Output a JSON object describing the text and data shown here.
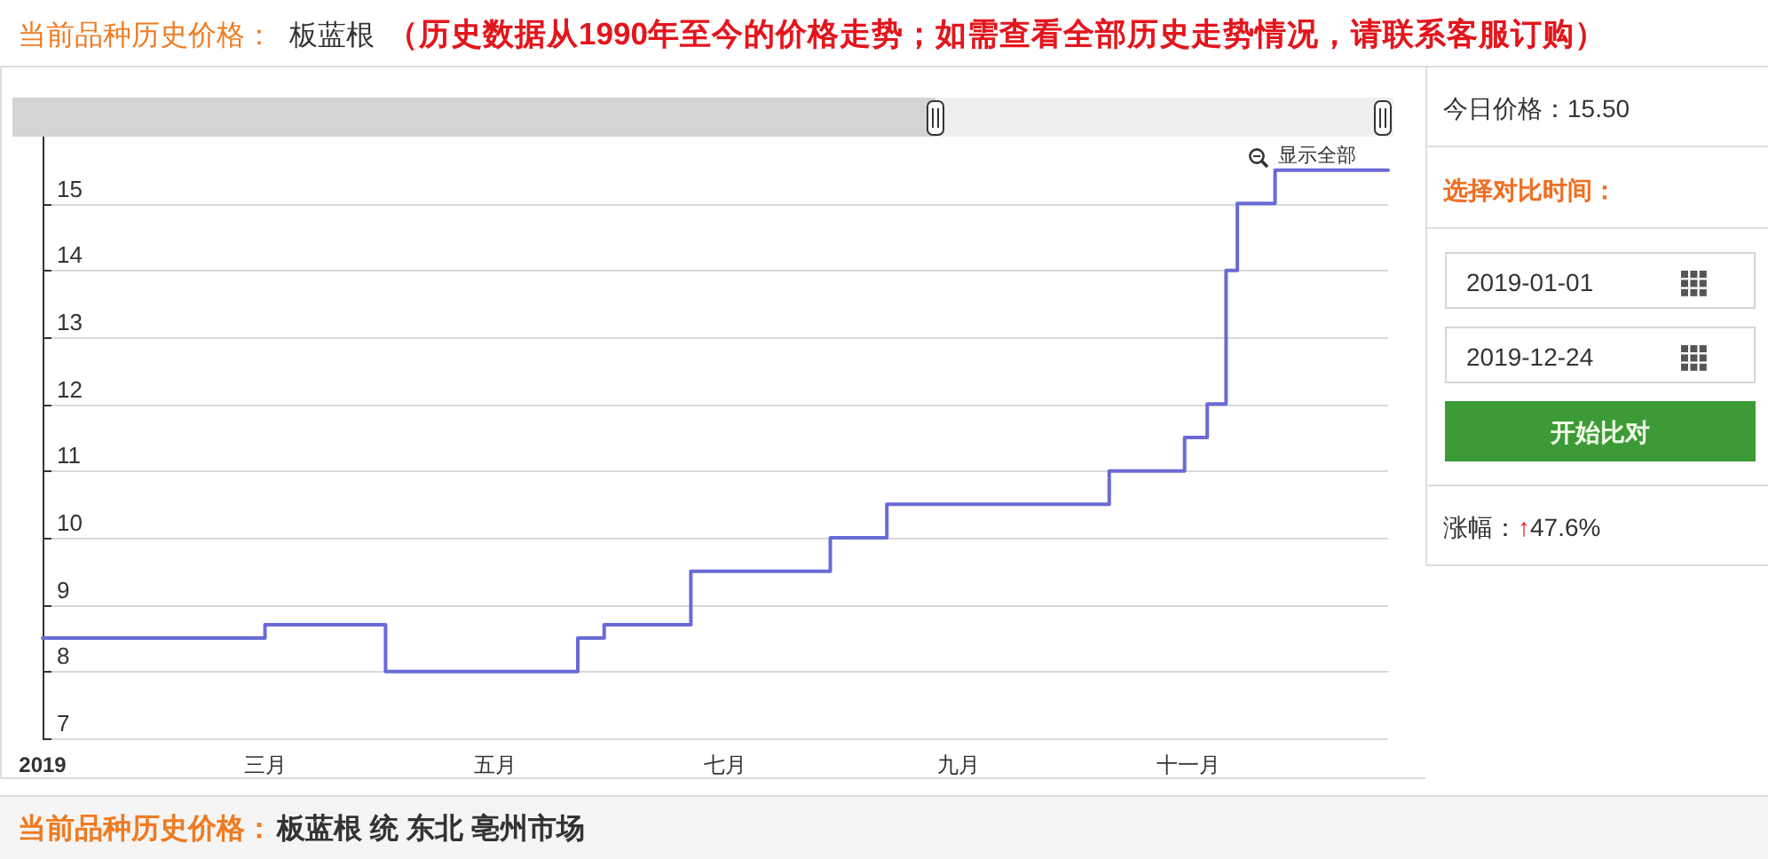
{
  "chart_data": [
    {
      "type": "step",
      "title": "当前品种历史价格：",
      "subtitle": "（历史数据从1990年至今的价格走势；如需查看全部历史走势情况，请联系客服订购）",
      "categories": [
        "2019",
        null,
        null,
        null,
        null,
        null,
        null,
        null,
        null,
        null,
        null,
        null,
        null,
        null,
        null,
        null,
        null,
        null,
        null,
        null,
        null,
        null,
        null,
        null,
        null,
        null,
        null,
        null,
        null,
        null,
        null,
        null,
        null,
        null,
        null,
        null,
        null,
        null,
        null,
        null,
        null,
        null,
        null,
        null,
        null,
        null,
        null,
        null,
        null,
        null,
        null,
        null,
        null,
        null,
        null,
        null,
        null,
        null,
        null,
        "三月",
        null,
        null,
        null,
        null,
        null,
        null,
        null,
        null,
        null,
        null,
        null,
        null,
        null,
        null,
        null,
        null,
        null,
        null,
        null,
        null,
        null,
        null,
        null,
        null,
        null,
        null,
        null,
        null,
        null,
        null,
        null,
        null,
        null,
        null,
        null,
        null,
        null,
        null,
        null,
        null,
        null,
        null,
        null,
        null,
        null,
        null,
        null,
        null,
        null,
        null,
        null,
        null,
        null,
        null,
        null,
        null,
        null,
        null,
        null,
        null,
        "五月",
        null,
        null,
        null,
        null,
        null,
        null,
        null,
        null,
        null,
        null,
        null,
        null,
        null,
        null,
        null,
        null,
        null,
        null,
        null,
        null,
        null,
        null,
        null,
        null,
        null,
        null,
        null,
        null,
        null,
        null,
        null,
        null,
        null,
        null,
        null,
        null,
        null,
        null,
        null,
        null,
        null,
        null,
        null,
        null,
        null,
        null,
        null,
        null,
        null,
        null,
        null,
        null,
        null,
        null,
        null,
        null,
        null,
        null,
        null,
        null,
        "七月",
        null,
        null,
        null,
        null,
        null,
        null,
        null,
        null,
        null,
        null,
        null,
        null,
        null,
        null,
        null,
        null,
        null,
        null,
        null,
        null,
        null,
        null,
        null,
        null,
        null,
        null,
        null,
        null,
        null,
        null,
        null,
        null,
        null,
        null,
        null,
        null,
        null,
        null,
        null,
        null,
        null,
        null,
        null,
        null,
        null,
        null,
        null,
        null,
        null,
        null,
        null,
        null,
        null,
        null,
        null,
        null,
        null,
        null,
        null,
        null,
        null,
        "九月",
        null,
        null,
        null,
        null,
        null,
        null,
        null,
        null,
        null,
        null,
        null,
        null,
        null,
        null,
        null,
        null,
        null,
        null,
        null,
        null,
        null,
        null,
        null,
        null,
        null,
        null,
        null,
        null,
        null,
        null,
        null,
        null,
        null,
        null,
        null,
        null,
        null,
        null,
        null,
        null,
        null,
        null,
        null,
        null,
        null,
        null,
        null,
        null,
        null,
        null,
        null,
        null,
        null,
        null,
        null,
        null,
        null,
        null,
        null,
        null,
        "十一月",
        null,
        null,
        null,
        null,
        null,
        null,
        null,
        null,
        null,
        null,
        null,
        null,
        null,
        null,
        null,
        null,
        null,
        null,
        null,
        null,
        null,
        null,
        null,
        null,
        null,
        null,
        null,
        null,
        null,
        null,
        null,
        null,
        null,
        null,
        null,
        null,
        null,
        null,
        null,
        null,
        null,
        null,
        null,
        null,
        null,
        null,
        null,
        null,
        null,
        null,
        null,
        null,
        null
      ],
      "values": [
        8.5,
        8.5,
        8.5,
        8.5,
        8.5,
        8.5,
        8.5,
        8.5,
        8.5,
        8.5,
        8.5,
        8.5,
        8.5,
        8.5,
        8.5,
        8.5,
        8.5,
        8.5,
        8.5,
        8.5,
        8.5,
        8.5,
        8.5,
        8.5,
        8.5,
        8.5,
        8.5,
        8.5,
        8.5,
        8.5,
        8.5,
        8.5,
        8.5,
        8.5,
        8.5,
        8.5,
        8.5,
        8.5,
        8.5,
        8.5,
        8.5,
        8.5,
        8.5,
        8.5,
        8.5,
        8.5,
        8.5,
        8.5,
        8.5,
        8.5,
        8.5,
        8.5,
        8.5,
        8.5,
        8.5,
        8.5,
        8.5,
        8.5,
        8.5,
        8.7,
        8.7,
        8.7,
        8.7,
        8.7,
        8.7,
        8.7,
        8.7,
        8.7,
        8.7,
        8.7,
        8.7,
        8.7,
        8.7,
        8.7,
        8.7,
        8.7,
        8.7,
        8.7,
        8.7,
        8.7,
        8.7,
        8.7,
        8.7,
        8.7,
        8.7,
        8.7,
        8.7,
        8.7,
        8.7,
        8.7,
        8.7,
        8,
        8,
        8,
        8,
        8,
        8,
        8,
        8,
        8,
        8,
        8,
        8,
        8,
        8,
        8,
        8,
        8,
        8,
        8,
        8,
        8,
        8,
        8,
        8,
        8,
        8,
        8,
        8,
        8,
        8,
        8,
        8,
        8,
        8,
        8,
        8,
        8,
        8,
        8,
        8,
        8,
        8,
        8,
        8,
        8,
        8,
        8,
        8,
        8,
        8,
        8,
        8.5,
        8.5,
        8.5,
        8.5,
        8.5,
        8.5,
        8.5,
        8.7,
        8.7,
        8.7,
        8.7,
        8.7,
        8.7,
        8.7,
        8.7,
        8.7,
        8.7,
        8.7,
        8.7,
        8.7,
        8.7,
        8.7,
        8.7,
        8.7,
        8.7,
        8.7,
        8.7,
        8.7,
        8.7,
        8.7,
        9.5,
        9.5,
        9.5,
        9.5,
        9.5,
        9.5,
        9.5,
        9.5,
        9.5,
        9.5,
        9.5,
        9.5,
        9.5,
        9.5,
        9.5,
        9.5,
        9.5,
        9.5,
        9.5,
        9.5,
        9.5,
        9.5,
        9.5,
        9.5,
        9.5,
        9.5,
        9.5,
        9.5,
        9.5,
        9.5,
        9.5,
        9.5,
        9.5,
        9.5,
        9.5,
        9.5,
        9.5,
        10,
        10,
        10,
        10,
        10,
        10,
        10,
        10,
        10,
        10,
        10,
        10,
        10,
        10,
        10,
        10.5,
        10.5,
        10.5,
        10.5,
        10.5,
        10.5,
        10.5,
        10.5,
        10.5,
        10.5,
        10.5,
        10.5,
        10.5,
        10.5,
        10.5,
        10.5,
        10.5,
        10.5,
        10.5,
        10.5,
        10.5,
        10.5,
        10.5,
        10.5,
        10.5,
        10.5,
        10.5,
        10.5,
        10.5,
        10.5,
        10.5,
        10.5,
        10.5,
        10.5,
        10.5,
        10.5,
        10.5,
        10.5,
        10.5,
        10.5,
        10.5,
        10.5,
        10.5,
        10.5,
        10.5,
        10.5,
        10.5,
        10.5,
        10.5,
        10.5,
        10.5,
        10.5,
        10.5,
        10.5,
        10.5,
        10.5,
        10.5,
        10.5,
        10.5,
        11,
        11,
        11,
        11,
        11,
        11,
        11,
        11,
        11,
        11,
        11,
        11,
        11,
        11,
        11,
        11,
        11,
        11,
        11,
        11,
        11.5,
        11.5,
        11.5,
        11.5,
        11.5,
        11.5,
        12,
        12,
        12,
        12,
        12,
        14,
        14,
        14,
        15,
        15,
        15,
        15,
        15,
        15,
        15,
        15,
        15,
        15,
        15.5,
        15.5,
        15.5,
        15.5,
        15.5,
        15.5,
        15.5,
        15.5,
        15.5,
        15.5,
        15.5,
        15.5,
        15.5,
        15.5,
        15.5,
        15.5,
        15.5,
        15.5,
        15.5,
        15.5,
        15.5,
        15.5,
        15.5,
        15.5,
        15.5,
        15.5,
        15.5,
        15.5,
        15.5,
        15.5,
        15.5
      ],
      "color": "#6a6ad6",
      "ylim": [
        7,
        16
      ],
      "yticks": [
        7,
        8,
        9,
        10,
        11,
        12,
        13,
        14,
        15
      ],
      "grid": "y",
      "annotations": [
        "板蓝根",
        "显示全部",
        "当前品种历史价格：",
        "板蓝根 统 东北 亳州市场"
      ]
    },
    {
      "type": "other",
      "annotations": [
        "今日价格：15.50",
        "选择对比时间：",
        "2019-01-01",
        "2019-12-24",
        "开始比对",
        "涨幅：",
        "↑",
        "47.6%"
      ]
    }
  ]
}
